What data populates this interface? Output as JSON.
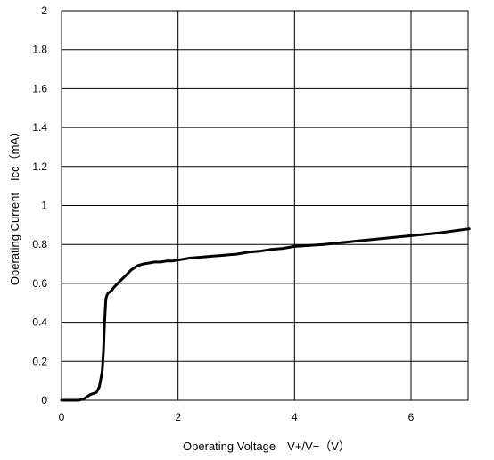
{
  "chart_data": {
    "type": "line",
    "title": "",
    "xlabel": "Operating Voltage　V+/V−（V）",
    "ylabel": "Operating Current　Icc（mA）",
    "xlim": [
      0,
      8
    ],
    "ylim": [
      0,
      2
    ],
    "grid": true,
    "legend": "none",
    "x_ticks": [
      {
        "value": 0,
        "label": "0"
      },
      {
        "value": 2,
        "label": "2"
      },
      {
        "value": 4,
        "label": "4"
      },
      {
        "value": 6,
        "label": "6"
      }
    ],
    "y_ticks": [
      {
        "value": 0,
        "label": "0"
      },
      {
        "value": 0.2,
        "label": "0.2"
      },
      {
        "value": 0.4,
        "label": "0.4"
      },
      {
        "value": 0.6,
        "label": "0.6"
      },
      {
        "value": 0.8,
        "label": "0.8"
      },
      {
        "value": 1,
        "label": "1"
      },
      {
        "value": 1.2,
        "label": "1.2"
      },
      {
        "value": 1.4,
        "label": "1.4"
      },
      {
        "value": 1.6,
        "label": "1.6"
      },
      {
        "value": 1.8,
        "label": "1.8"
      },
      {
        "value": 2,
        "label": "2"
      }
    ],
    "series": [
      {
        "color": "#000000",
        "x": [
          0,
          0.3,
          0.4,
          0.5,
          0.6,
          0.65,
          0.7,
          0.72,
          0.74,
          0.76,
          0.78,
          0.8,
          0.85,
          0.9,
          1.0,
          1.1,
          1.2,
          1.3,
          1.4,
          1.5,
          1.6,
          1.7,
          1.8,
          1.9,
          2.0,
          2.2,
          2.4,
          2.6,
          2.8,
          3.0,
          3.2,
          3.4,
          3.6,
          3.8,
          4.0,
          4.5,
          5.0,
          5.5,
          6.0,
          6.5,
          7.0
        ],
        "y": [
          0,
          0,
          0.01,
          0.03,
          0.04,
          0.07,
          0.15,
          0.25,
          0.4,
          0.52,
          0.54,
          0.55,
          0.56,
          0.58,
          0.61,
          0.64,
          0.67,
          0.69,
          0.7,
          0.705,
          0.71,
          0.71,
          0.715,
          0.715,
          0.72,
          0.73,
          0.735,
          0.74,
          0.745,
          0.75,
          0.76,
          0.765,
          0.775,
          0.78,
          0.79,
          0.8,
          0.815,
          0.83,
          0.845,
          0.86,
          0.88
        ]
      }
    ]
  }
}
